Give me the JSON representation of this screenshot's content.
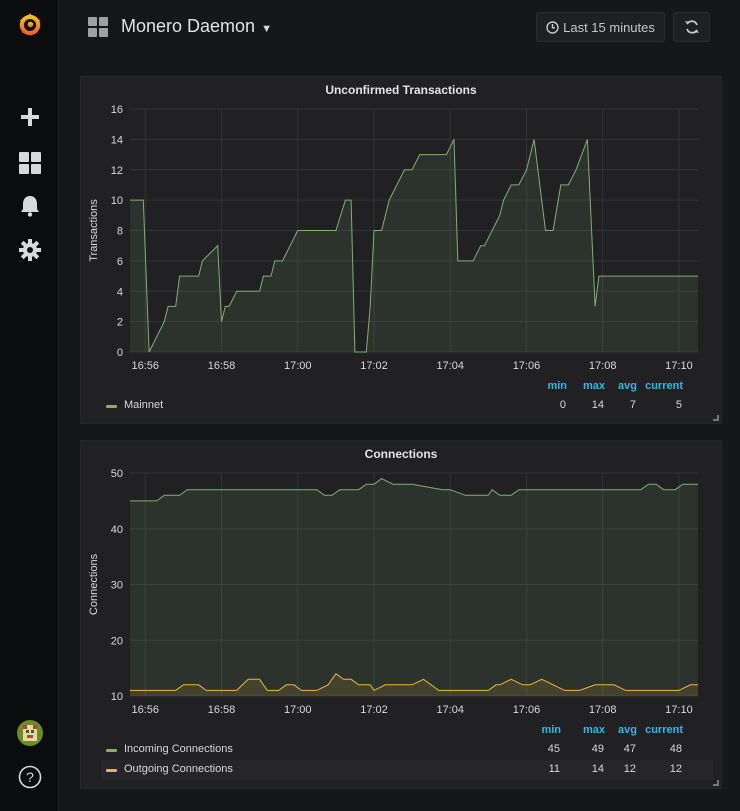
{
  "dashboard": {
    "title": "Monero Daemon",
    "time_range_label": "Last 15 minutes",
    "icons": [
      "grafana-logo-icon",
      "plus-icon",
      "dashboards-icon",
      "bell-icon",
      "gear-icon",
      "avatar",
      "help-icon",
      "clock-icon",
      "refresh-icon"
    ]
  },
  "panels": {
    "tx": {
      "title": "Unconfirmed Transactions",
      "legend_headers": {
        "min": "min",
        "max": "max",
        "avg": "avg",
        "current": "current"
      },
      "legend": [
        {
          "name": "Mainnet",
          "min": "0",
          "max": "14",
          "avg": "7",
          "current": "5",
          "color": "#7eb26d"
        }
      ]
    },
    "conn": {
      "title": "Connections",
      "legend_headers": {
        "min": "min",
        "max": "max",
        "avg": "avg",
        "current": "current"
      },
      "legend": [
        {
          "name": "Incoming Connections",
          "min": "45",
          "max": "49",
          "avg": "47",
          "current": "48",
          "color": "#7eb26d"
        },
        {
          "name": "Outgoing Connections",
          "min": "11",
          "max": "14",
          "avg": "12",
          "current": "12",
          "color": "#eab839"
        }
      ]
    }
  },
  "chart_data": [
    {
      "type": "area",
      "title": "Unconfirmed Transactions",
      "ylabel": "Transactions",
      "ylim": [
        0,
        16
      ],
      "yticks": [
        0,
        2,
        4,
        6,
        8,
        10,
        12,
        14,
        16
      ],
      "xticks": [
        "16:56",
        "16:58",
        "17:00",
        "17:02",
        "17:04",
        "17:06",
        "17:08",
        "17:10"
      ],
      "xlim": [
        "16:55.6",
        "17:10.5"
      ],
      "grid": true,
      "series": [
        {
          "name": "Mainnet",
          "color": "#7eb26d",
          "x": [
            55.6,
            55.95,
            56.1,
            56.5,
            56.6,
            56.8,
            56.9,
            57.4,
            57.5,
            57.9,
            58.0,
            58.1,
            58.2,
            58.4,
            58.5,
            58.8,
            59.0,
            59.1,
            59.3,
            59.4,
            59.6,
            59.8,
            60.0,
            60.1,
            60.4,
            60.8,
            61.0,
            61.25,
            61.4,
            61.5,
            61.8,
            61.9,
            62.0,
            62.2,
            62.4,
            62.8,
            63.0,
            63.2,
            63.4,
            63.6,
            63.9,
            64.1,
            64.2,
            64.4,
            64.6,
            64.8,
            64.9,
            65.3,
            65.4,
            65.6,
            65.8,
            66.0,
            66.2,
            66.5,
            66.7,
            66.9,
            67.0,
            67.1,
            67.3,
            67.6,
            67.8,
            67.9,
            68.1,
            68.2,
            68.4,
            68.6,
            69.0,
            69.5,
            70.0,
            70.5
          ],
          "values": [
            10,
            10,
            0,
            2,
            3,
            3,
            5,
            5,
            6,
            7,
            2,
            3,
            3,
            4,
            4,
            4,
            4,
            5,
            5,
            6,
            6,
            7,
            8,
            8,
            8,
            8,
            8,
            10,
            10,
            0,
            0,
            3,
            8,
            8,
            10,
            12,
            12,
            13,
            13,
            13,
            13,
            14,
            6,
            6,
            6,
            7,
            7,
            9,
            10,
            11,
            11,
            12,
            14,
            8,
            8,
            11,
            11,
            11,
            12,
            14,
            3,
            5,
            5,
            5,
            5,
            5,
            5,
            5,
            5,
            5
          ]
        }
      ]
    },
    {
      "type": "area",
      "title": "Connections",
      "ylabel": "Connections",
      "ylim": [
        10,
        50
      ],
      "yticks": [
        10,
        20,
        30,
        40,
        50
      ],
      "xticks": [
        "16:56",
        "16:58",
        "17:00",
        "17:02",
        "17:04",
        "17:06",
        "17:08",
        "17:10"
      ],
      "xlim": [
        "16:55.6",
        "17:10.5"
      ],
      "grid": true,
      "series": [
        {
          "name": "Incoming Connections",
          "color": "#7eb26d",
          "x": [
            55.6,
            56.3,
            56.5,
            56.9,
            57.1,
            57.5,
            58.0,
            59.0,
            60.0,
            60.5,
            60.7,
            60.9,
            61.1,
            61.6,
            61.8,
            62.0,
            62.2,
            62.5,
            63.0,
            63.8,
            64.0,
            64.4,
            64.8,
            65.0,
            65.1,
            65.3,
            65.6,
            65.8,
            66.5,
            67.5,
            68.5,
            69.0,
            69.2,
            69.4,
            69.6,
            69.9,
            70.1,
            70.5
          ],
          "values": [
            45,
            45,
            46,
            46,
            47,
            47,
            47,
            47,
            47,
            47,
            46,
            46,
            47,
            47,
            48,
            48,
            49,
            48,
            48,
            47,
            47,
            46,
            46,
            46,
            47,
            46,
            46,
            47,
            47,
            47,
            47,
            47,
            48,
            48,
            47,
            47,
            48,
            48
          ]
        },
        {
          "name": "Outgoing Connections",
          "color": "#eab839",
          "x": [
            55.6,
            56.4,
            56.8,
            57.0,
            57.4,
            57.6,
            58.0,
            58.4,
            58.7,
            59.0,
            59.2,
            59.5,
            59.7,
            59.9,
            60.1,
            60.5,
            60.8,
            61.0,
            61.2,
            61.4,
            61.6,
            61.9,
            62.0,
            62.3,
            62.6,
            62.8,
            63.0,
            63.3,
            63.7,
            64.0,
            64.4,
            64.8,
            65.0,
            65.2,
            65.3,
            65.6,
            65.9,
            66.1,
            66.4,
            66.7,
            67.0,
            67.4,
            67.8,
            68.3,
            68.6,
            69.0,
            69.4,
            69.8,
            70.0,
            70.3,
            70.5
          ],
          "values": [
            11,
            11,
            11,
            12,
            12,
            11,
            11,
            11,
            13,
            13,
            11,
            11,
            12,
            12,
            11,
            11,
            12,
            14,
            13,
            13,
            12,
            12,
            11,
            12,
            12,
            12,
            12,
            13,
            11,
            11,
            11,
            11,
            11,
            12,
            12,
            13,
            12,
            12,
            13,
            12,
            11,
            11,
            12,
            12,
            11,
            11,
            11,
            11,
            11,
            12,
            12
          ]
        }
      ]
    }
  ]
}
